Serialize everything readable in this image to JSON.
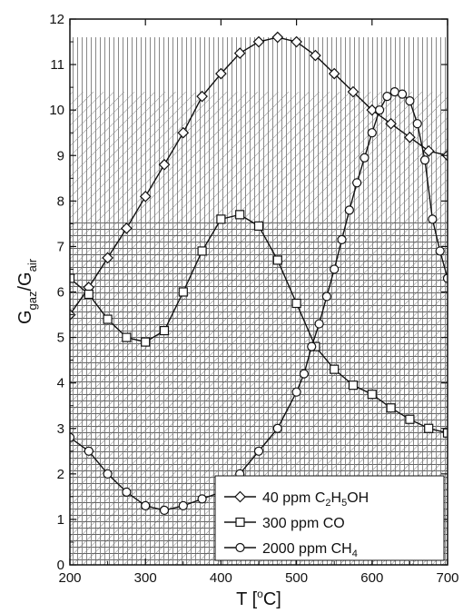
{
  "chart_data": {
    "type": "line",
    "xlabel": "T [°C]",
    "ylabel": "G_gaz/G_air",
    "xlim": [
      200,
      700
    ],
    "ylim": [
      0,
      12
    ],
    "x_ticks": [
      200,
      300,
      400,
      500,
      600,
      700
    ],
    "y_ticks": [
      0,
      1,
      2,
      3,
      4,
      5,
      6,
      7,
      8,
      9,
      10,
      11,
      12
    ],
    "grid": false,
    "legend_position": "bottom-right",
    "background_hatching": [
      {
        "style": "vertical",
        "ymax": 11.6
      },
      {
        "style": "diagonal",
        "ymax": 10.4
      },
      {
        "style": "grid",
        "ymax": 7.6
      }
    ],
    "series": [
      {
        "name": "40 ppm C2H5OH",
        "marker": "diamond",
        "x": [
          200,
          225,
          250,
          275,
          300,
          325,
          350,
          375,
          400,
          425,
          450,
          475,
          500,
          525,
          550,
          575,
          600,
          625,
          650,
          675,
          700
        ],
        "y": [
          5.5,
          6.1,
          6.75,
          7.4,
          8.1,
          8.8,
          9.5,
          10.3,
          10.8,
          11.25,
          11.5,
          11.6,
          11.5,
          11.2,
          10.8,
          10.4,
          10.0,
          9.7,
          9.4,
          9.1,
          9.0
        ]
      },
      {
        "name": "300 ppm CO",
        "marker": "square",
        "x": [
          200,
          225,
          250,
          275,
          300,
          325,
          350,
          375,
          400,
          425,
          450,
          475,
          500,
          525,
          550,
          575,
          600,
          625,
          650,
          675,
          700
        ],
        "y": [
          6.3,
          5.95,
          5.4,
          5.0,
          4.9,
          5.15,
          6.0,
          6.9,
          7.6,
          7.7,
          7.45,
          6.7,
          5.75,
          4.8,
          4.3,
          3.95,
          3.75,
          3.45,
          3.2,
          3.0,
          2.9
        ]
      },
      {
        "name": "2000 ppm CH4",
        "marker": "circle",
        "x": [
          200,
          225,
          250,
          275,
          300,
          325,
          350,
          375,
          400,
          425,
          450,
          475,
          500,
          510,
          520,
          530,
          540,
          550,
          560,
          570,
          580,
          590,
          600,
          610,
          620,
          630,
          640,
          650,
          660,
          670,
          680,
          690,
          700
        ],
        "y": [
          2.8,
          2.5,
          2.0,
          1.6,
          1.3,
          1.2,
          1.3,
          1.45,
          1.6,
          2.0,
          2.5,
          3.0,
          3.8,
          4.2,
          4.8,
          5.3,
          5.9,
          6.5,
          7.15,
          7.8,
          8.4,
          8.95,
          9.5,
          10.0,
          10.3,
          10.4,
          10.35,
          10.2,
          9.7,
          8.9,
          7.6,
          6.9,
          6.3
        ]
      }
    ],
    "legend": {
      "entries": [
        {
          "prefix": "40 ppm C",
          "sub1": "2",
          "mid": "H",
          "sub2": "5",
          "suffix": "OH",
          "marker": "diamond"
        },
        {
          "prefix": "300 ppm CO",
          "sub1": "",
          "mid": "",
          "sub2": "",
          "suffix": "",
          "marker": "square"
        },
        {
          "prefix": "2000 ppm CH",
          "sub1": "4",
          "mid": "",
          "sub2": "",
          "suffix": "",
          "marker": "circle"
        }
      ]
    }
  },
  "axes": {
    "xlabel_main": "T [",
    "xlabel_sup": "o",
    "xlabel_end": "C]",
    "ylabel_main": "G",
    "ylabel_sub1": "gaz",
    "ylabel_mid": "/G",
    "ylabel_sub2": "air"
  }
}
